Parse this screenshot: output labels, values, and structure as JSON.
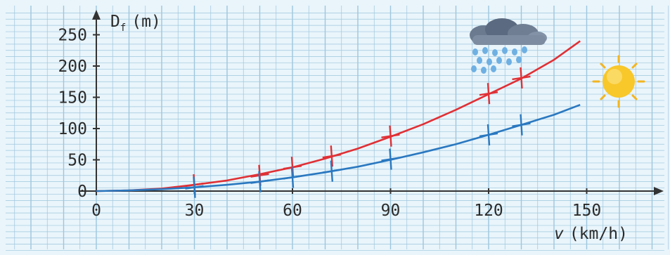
{
  "chart_data": {
    "type": "line",
    "xlabel": "v (km/h)",
    "ylabel": "Df (m)",
    "ylabel_main": "D",
    "ylabel_sub": "f",
    "ylabel_unit": "(m)",
    "xlabel_var": "v",
    "xlabel_unit": "(km/h)",
    "xlim": [
      0,
      170
    ],
    "ylim": [
      0,
      270
    ],
    "x_ticks": [
      0,
      30,
      60,
      90,
      120,
      150
    ],
    "y_ticks": [
      0,
      50,
      100,
      150,
      200,
      250
    ],
    "grid": true,
    "series": [
      {
        "color": "#e03035",
        "condition_icon": "rain-cloud-icon",
        "curve_x": [
          0,
          10,
          20,
          30,
          40,
          50,
          60,
          70,
          80,
          90,
          100,
          110,
          120,
          130,
          140,
          148
        ],
        "curve_y": [
          0,
          1,
          4,
          10,
          17,
          27,
          38,
          52,
          68,
          87,
          107,
          130,
          155,
          180,
          210,
          240
        ],
        "measured_x": [
          30,
          50,
          60,
          72,
          90,
          120,
          130
        ],
        "measured_y": [
          10,
          25,
          38,
          56,
          88,
          156,
          181
        ]
      },
      {
        "color": "#2a78c0",
        "condition_icon": "sun-icon",
        "curve_x": [
          0,
          10,
          20,
          30,
          40,
          50,
          60,
          70,
          80,
          90,
          100,
          110,
          120,
          130,
          140,
          148
        ],
        "curve_y": [
          0,
          1,
          3,
          6,
          10,
          15,
          22,
          30,
          39,
          50,
          62,
          75,
          90,
          106,
          122,
          138
        ],
        "measured_x": [
          30,
          50,
          60,
          72,
          90,
          120,
          130
        ],
        "measured_y": [
          6,
          15,
          22,
          32,
          51,
          90,
          106
        ]
      }
    ],
    "colors": {
      "background": "#e9f5fb",
      "grid": "#9ec6dd",
      "axis": "#333333",
      "text": "#2b2b2b"
    }
  }
}
